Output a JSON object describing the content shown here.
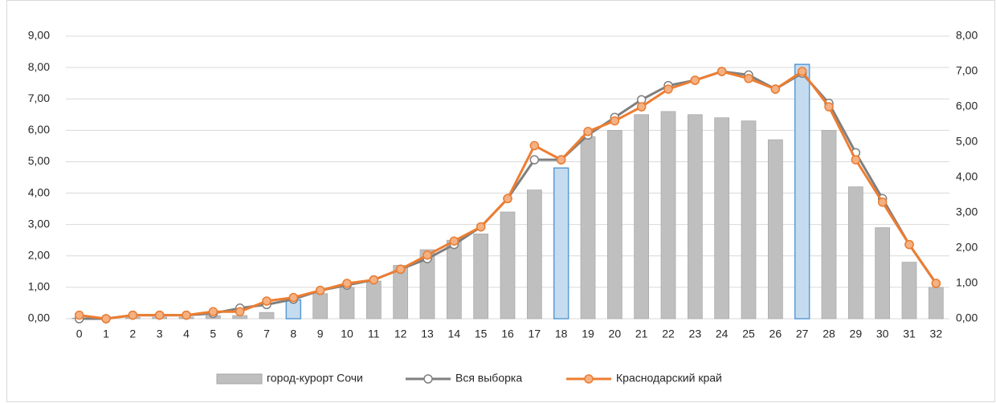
{
  "chart_data": {
    "type": "combo",
    "categories": [
      "0",
      "1",
      "2",
      "3",
      "4",
      "5",
      "6",
      "7",
      "8",
      "9",
      "10",
      "11",
      "12",
      "13",
      "14",
      "15",
      "16",
      "17",
      "18",
      "19",
      "20",
      "21",
      "22",
      "23",
      "24",
      "25",
      "26",
      "27",
      "28",
      "29",
      "30",
      "31",
      "32"
    ],
    "series": [
      {
        "name": "город-курорт Сочи",
        "type": "bar",
        "color": "#bfbfbf",
        "axis": "y",
        "colors": [
          "#bfbfbf",
          "#bfbfbf",
          "#bfbfbf",
          "#bfbfbf",
          "#bfbfbf",
          "#bfbfbf",
          "#bfbfbf",
          "#bfbfbf",
          "#c5dcf0",
          "#bfbfbf",
          "#bfbfbf",
          "#bfbfbf",
          "#bfbfbf",
          "#bfbfbf",
          "#bfbfbf",
          "#bfbfbf",
          "#bfbfbf",
          "#bfbfbf",
          "#c5dcf0",
          "#bfbfbf",
          "#bfbfbf",
          "#bfbfbf",
          "#bfbfbf",
          "#bfbfbf",
          "#bfbfbf",
          "#bfbfbf",
          "#bfbfbf",
          "#c5dcf0",
          "#bfbfbf",
          "#bfbfbf",
          "#bfbfbf",
          "#bfbfbf",
          "#bfbfbf"
        ],
        "values": [
          0.02,
          0.02,
          0.05,
          0.05,
          0.05,
          0.1,
          0.1,
          0.2,
          0.6,
          0.8,
          1.0,
          1.2,
          1.7,
          2.2,
          2.5,
          2.7,
          3.4,
          4.1,
          4.8,
          5.8,
          6.0,
          6.5,
          6.6,
          6.5,
          6.4,
          6.3,
          5.7,
          8.1,
          6.0,
          4.2,
          2.9,
          1.8,
          1.0
        ]
      },
      {
        "name": "Вся выборка",
        "type": "line",
        "color": "#7f7f7f",
        "axis": "y2",
        "values": [
          0.0,
          0.0,
          0.1,
          0.1,
          0.1,
          0.15,
          0.3,
          0.4,
          0.55,
          0.8,
          0.95,
          1.1,
          1.4,
          1.7,
          2.1,
          2.6,
          3.4,
          4.5,
          4.5,
          5.2,
          5.7,
          6.2,
          6.6,
          6.75,
          7.0,
          6.9,
          6.5,
          6.95,
          6.1,
          4.7,
          3.4,
          2.1,
          1.0
        ]
      },
      {
        "name": "Краснодарский край",
        "type": "line",
        "color": "#ed7d31",
        "axis": "y2",
        "values": [
          0.1,
          0.0,
          0.1,
          0.1,
          0.1,
          0.2,
          0.2,
          0.5,
          0.6,
          0.8,
          1.0,
          1.1,
          1.4,
          1.8,
          2.2,
          2.6,
          3.4,
          4.9,
          4.5,
          5.3,
          5.6,
          6.0,
          6.5,
          6.75,
          7.0,
          6.8,
          6.5,
          7.0,
          6.0,
          4.5,
          3.3,
          2.1,
          1.0
        ]
      }
    ],
    "ylim": [
      0,
      9
    ],
    "yticks": [
      {
        "value": 0,
        "label": "0,00"
      },
      {
        "value": 1,
        "label": "1,00"
      },
      {
        "value": 2,
        "label": "2,00"
      },
      {
        "value": 3,
        "label": "3,00"
      },
      {
        "value": 4,
        "label": "4,00"
      },
      {
        "value": 5,
        "label": "5,00"
      },
      {
        "value": 6,
        "label": "6,00"
      },
      {
        "value": 7,
        "label": "7,00"
      },
      {
        "value": 8,
        "label": "8,00"
      },
      {
        "value": 9,
        "label": "9,00"
      }
    ],
    "y2lim": [
      0,
      8
    ],
    "y2ticks": [
      {
        "value": 0,
        "label": "0,00"
      },
      {
        "value": 1,
        "label": "1,00"
      },
      {
        "value": 2,
        "label": "2,00"
      },
      {
        "value": 3,
        "label": "3,00"
      },
      {
        "value": 4,
        "label": "4,00"
      },
      {
        "value": 5,
        "label": "5,00"
      },
      {
        "value": 6,
        "label": "6,00"
      },
      {
        "value": 7,
        "label": "7,00"
      },
      {
        "value": 8,
        "label": "8,00"
      }
    ],
    "grid": true
  }
}
